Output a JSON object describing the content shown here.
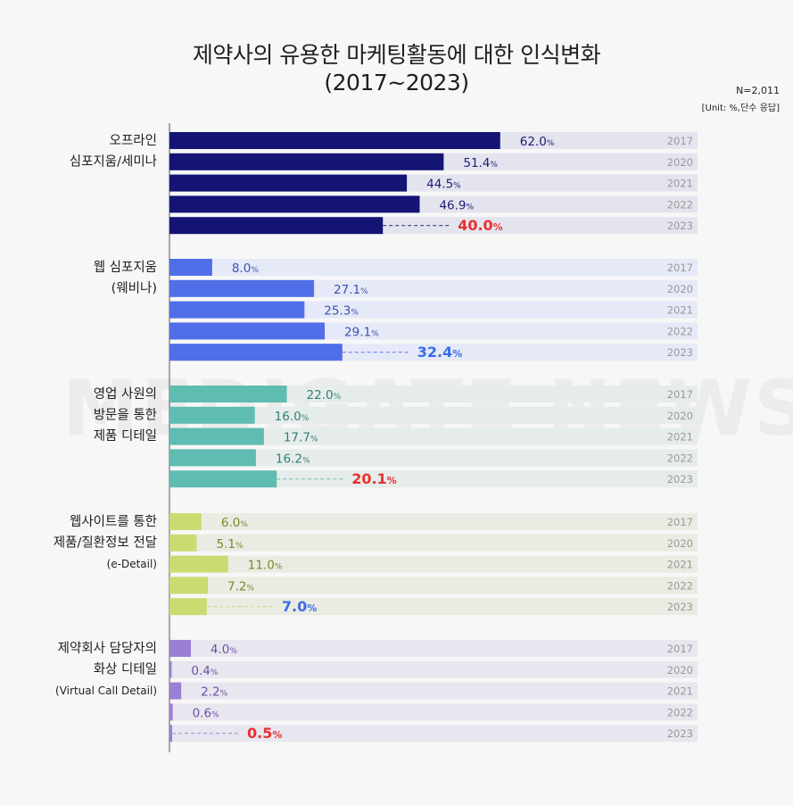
{
  "title_line1": "제약사의 유용한 마케팅활동에 대한  인식변화",
  "title_line2": "(2017~2023)",
  "note_n": "N=2,011",
  "note_unit": "[Unit: %,단수 응답]",
  "watermark": "MEDIGATE NEWS",
  "chart_data": {
    "type": "bar",
    "orientation": "horizontal",
    "unit": "%",
    "years": [
      "2017",
      "2020",
      "2021",
      "2022",
      "2023"
    ],
    "xlim": [
      0,
      100
    ],
    "groups": [
      {
        "label_lines": [
          "오프라인",
          "심포지움/세미나"
        ],
        "values": [
          62.0,
          51.4,
          44.5,
          46.9,
          40.0
        ],
        "bar_color": "#141475",
        "track_color": "#e4e4ee",
        "label_color": "#1c1c7a",
        "highlight_color": "#e8312f"
      },
      {
        "label_lines": [
          "웹 심포지움",
          "(웨비나)"
        ],
        "values": [
          8.0,
          27.1,
          25.3,
          29.1,
          32.4
        ],
        "bar_color": "#4f6ee8",
        "track_color": "#e6e9f7",
        "label_color": "#3a53b5",
        "highlight_color": "#3b6de6"
      },
      {
        "label_lines": [
          "영업 사원의",
          "방문을 통한",
          "제품 디테일"
        ],
        "values": [
          22.0,
          16.0,
          17.7,
          16.2,
          20.1
        ],
        "bar_color": "#5fbcb0",
        "track_color": "#e6ecea",
        "label_color": "#2d8077",
        "highlight_color": "#e8312f"
      },
      {
        "label_lines": [
          "웹사이트를 통한",
          "제품/질환정보 전달",
          "(e-Detail)"
        ],
        "values": [
          6.0,
          5.1,
          11.0,
          7.2,
          7.0
        ],
        "bar_color": "#c9dc72",
        "track_color": "#eaebe2",
        "label_color": "#7a8a2a",
        "highlight_color": "#3b6de6"
      },
      {
        "label_lines": [
          "제약회사 담당자의",
          "화상 디테일",
          "(Virtual Call Detail)"
        ],
        "values": [
          4.0,
          0.4,
          2.2,
          0.6,
          0.5
        ],
        "bar_color": "#9b7fd4",
        "track_color": "#e8e6ee",
        "label_color": "#6a50a8",
        "highlight_color": "#e8312f"
      }
    ]
  }
}
